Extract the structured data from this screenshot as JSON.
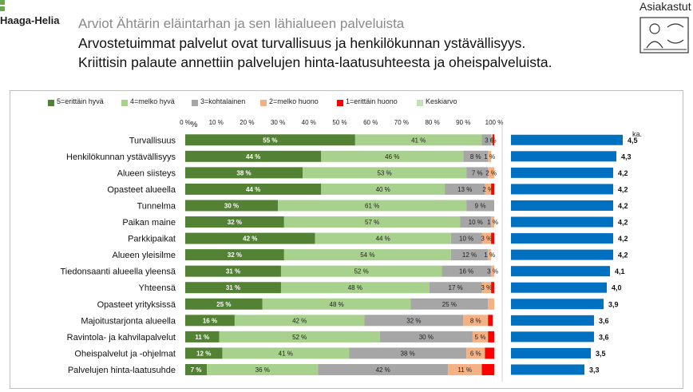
{
  "header": {
    "logo_text": "Haaga-Helia",
    "subtitle": "Arviot Ähtärin eläintarhan ja sen lähialueen palveluista",
    "headline_lines": [
      "Arvostetuimmat palvelut ovat turvallisuus ja henkilökunnan ystävällisyys.",
      "Kriittisin palaute annettiin palvelujen hinta-laatusuhteesta ja oheispalveluista."
    ],
    "corner_title": "Asiakastut",
    "corner_icon": "customer-survey-icon"
  },
  "chart_data": [
    {
      "type": "bar",
      "orientation": "horizontal",
      "stacked": true,
      "title": "",
      "xlabel": "",
      "ylabel": "",
      "xlim": [
        0,
        100
      ],
      "x_ticks": [
        "0 %",
        "10 %",
        "20 %",
        "30 %",
        "40 %",
        "50 %",
        "60 %",
        "70 %",
        "80 %",
        "90 %",
        "100 %"
      ],
      "extra_tick_symbol": "%",
      "categories": [
        "Turvallisuus",
        "Henkilökunnan ystävällisyys",
        "Alueen siisteys",
        "Opasteet alueella",
        "Tunnelma",
        "Paikan maine",
        "Parkkipaikat",
        "Alueen yleisilme",
        "Tiedonsaanti alueella yleensä",
        "Yhteensä",
        "Opasteet yrityksissä",
        "Majoitustarjonta alueella",
        "Ravintola- ja kahvilapalvelut",
        "Oheispalvelut ja -ohjelmat",
        "Palvelujen hinta-laatusuhde"
      ],
      "series": [
        {
          "name": "5=erittäin hyvä",
          "color": "#548235",
          "values": [
            55,
            44,
            38,
            44,
            30,
            32,
            42,
            32,
            31,
            31,
            25,
            16,
            11,
            12,
            7
          ],
          "labels": [
            "55 %",
            "44 %",
            "38 %",
            "44 %",
            "30 %",
            "32 %",
            "42 %",
            "32 %",
            "31 %",
            "31 %",
            "25 %",
            "16 %",
            "11 %",
            "12 %",
            "7 %"
          ]
        },
        {
          "name": "4=melko hyvä",
          "color": "#a9d18e",
          "values": [
            41,
            46,
            53,
            40,
            61,
            57,
            44,
            54,
            52,
            48,
            48,
            42,
            52,
            41,
            36
          ],
          "labels": [
            "41 %",
            "46 %",
            "53 %",
            "40 %",
            "61 %",
            "57 %",
            "44 %",
            "54 %",
            "52 %",
            "48 %",
            "48 %",
            "42 %",
            "52 %",
            "41 %",
            "36 %"
          ]
        },
        {
          "name": "3=kohtalainen",
          "color": "#a6a6a6",
          "values": [
            3,
            8,
            7,
            13,
            9,
            10,
            10,
            12,
            16,
            17,
            25,
            32,
            30,
            38,
            42
          ],
          "labels": [
            "3",
            "8 %",
            "7 %",
            "13 %",
            "9 %",
            "10 %",
            "10 %",
            "12 %",
            "16 %",
            "17 %",
            "25 %",
            "32 %",
            "30 %",
            "38 %",
            "42 %"
          ]
        },
        {
          "name": "2=melko huono",
          "color": "#f4b183",
          "values": [
            0.5,
            1,
            2,
            2,
            0,
            1,
            3,
            1,
            3,
            3,
            2,
            8,
            5,
            6,
            11
          ],
          "labels": [
            "0",
            "1 %",
            "2 %",
            "2 %",
            "",
            "1 %",
            "3 %",
            "1 %",
            "3 %",
            "3 %",
            "",
            "8 %",
            "5 %",
            "6 %",
            "11 %"
          ]
        },
        {
          "name": "1=erittäin huono",
          "color": "#ff0000",
          "values": [
            0.5,
            0,
            0,
            1,
            0,
            0,
            1,
            0,
            0,
            1,
            0,
            1.5,
            2,
            3,
            4
          ],
          "labels": [
            "%",
            "",
            "",
            "",
            "",
            "",
            "",
            "",
            "",
            "",
            "",
            "",
            "",
            "",
            ""
          ]
        }
      ],
      "legend_extra": {
        "name": "Keskiarvo",
        "color": "#c5e0b4"
      },
      "legend_position": "top"
    },
    {
      "type": "bar",
      "orientation": "horizontal",
      "title": "ka.",
      "color": "#0070c0",
      "xlim": [
        1,
        5
      ],
      "values": [
        4.5,
        4.3,
        4.2,
        4.2,
        4.2,
        4.2,
        4.2,
        4.2,
        4.1,
        4.0,
        3.9,
        3.6,
        3.6,
        3.5,
        3.3
      ],
      "labels": [
        "4,5",
        "4,3",
        "4,2",
        "4,2",
        "4,2",
        "4,2",
        "4,2",
        "4,2",
        "4,1",
        "4,0",
        "3,9",
        "3,6",
        "3,6",
        "3,5",
        "3,3"
      ]
    }
  ]
}
